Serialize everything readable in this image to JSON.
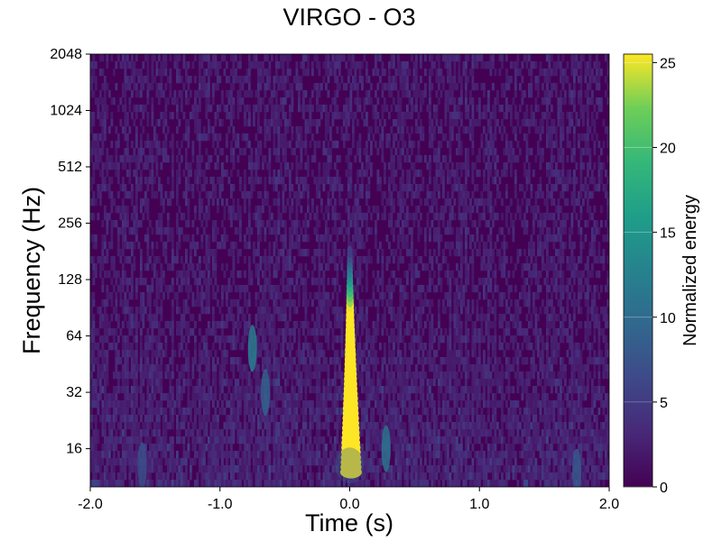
{
  "chart_data": {
    "type": "heatmap",
    "title": "VIRGO - O3",
    "xlabel": "Time (s)",
    "ylabel": "Frequency (Hz)",
    "xlim": [
      -2.0,
      2.0
    ],
    "ylim": [
      10,
      2048
    ],
    "yscale": "log2",
    "xticks": [
      -2.0,
      -1.0,
      0.0,
      1.0,
      2.0
    ],
    "xtick_labels": [
      "-2.0",
      "-1.0",
      "0.0",
      "1.0",
      "2.0"
    ],
    "yticks": [
      16,
      32,
      64,
      128,
      256,
      512,
      1024,
      2048
    ],
    "ytick_labels": [
      "16",
      "32",
      "64",
      "128",
      "256",
      "512",
      "1024",
      "2048"
    ],
    "colormap": "viridis",
    "colorbar": {
      "label": "Normalized energy",
      "range": [
        0,
        25.5
      ],
      "ticks": [
        0,
        5,
        10,
        15,
        20,
        25
      ],
      "tick_labels": [
        "0",
        "5",
        "10",
        "15",
        "20",
        "25"
      ]
    },
    "features": [
      {
        "name": "chirp",
        "t": 0.0,
        "f_min": 12,
        "f_max": 180,
        "peak_energy": 25.5
      },
      {
        "name": "blob-1",
        "t": -0.75,
        "f": 55,
        "energy": 12
      },
      {
        "name": "blob-2",
        "t": 0.28,
        "f": 16,
        "energy": 11
      },
      {
        "name": "blob-3",
        "t": -0.65,
        "f": 32,
        "energy": 9
      },
      {
        "name": "blob-4",
        "t": 1.75,
        "f": 12,
        "energy": 8
      },
      {
        "name": "blob-5",
        "t": -1.6,
        "f": 13,
        "energy": 7
      }
    ]
  }
}
